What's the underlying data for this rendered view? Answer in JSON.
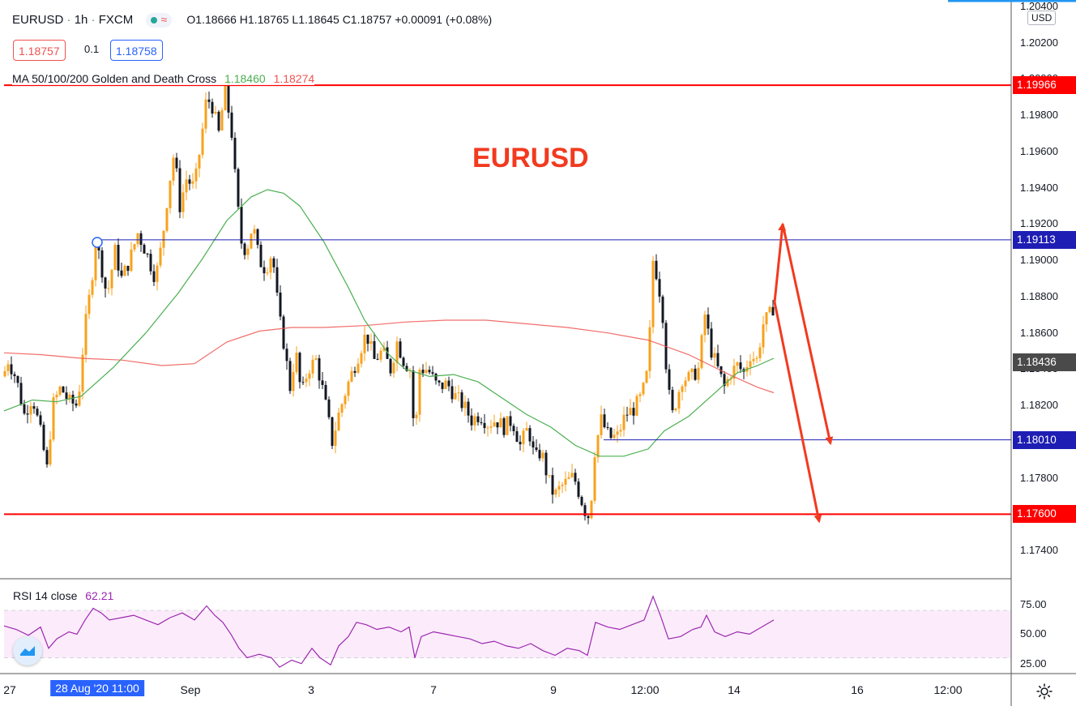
{
  "header": {
    "symbol": "EURUSD",
    "interval": "1h",
    "exchange": "FXCM",
    "ohlc": "O1.18666  H1.18765  L1.18645  C1.18757  +0.00091 (+0.08%)",
    "sell_price": "1.18757",
    "spread": "0.1",
    "buy_price": "1.18758"
  },
  "indicator": {
    "label": "MA 50/100/200 Golden and Death Cross",
    "value_green": "1.18460",
    "value_red": "1.18274"
  },
  "annotation_title": "EURUSD",
  "currency": "USD",
  "colors": {
    "candle_up": "#f7a21c",
    "candle_down": "#131722",
    "ma_fast": "#4caf50",
    "ma_slow": "#ef5350",
    "level_red": "#ff0000",
    "level_blue": "#1e1eb4",
    "arrow": "#f23a1f",
    "rsi_line": "#9c27b0",
    "rsi_band": "#fcecfb"
  },
  "chart_data": {
    "type": "candlestick",
    "ylim": [
      1.1728,
      1.204
    ],
    "y_ticks": [
      "1.20400",
      "1.20200",
      "1.20000",
      "1.19800",
      "1.19600",
      "1.19400",
      "1.19200",
      "1.19000",
      "1.18800",
      "1.18600",
      "1.18400",
      "1.18200",
      "1.18000",
      "1.17800",
      "1.17600",
      "1.17400"
    ],
    "x_ticks": [
      "27",
      "28 Aug '20  11:00",
      "Sep",
      "3",
      "7",
      "9",
      "12:00",
      "14",
      "16",
      "12:00"
    ],
    "horizontal_levels": [
      {
        "value": 1.19966,
        "label": "1.19966",
        "color": "red"
      },
      {
        "value": 1.19113,
        "label": "1.19113",
        "color": "blue"
      },
      {
        "value": 1.18436,
        "label": "1.18436",
        "color": "gray"
      },
      {
        "value": 1.1801,
        "label": "1.18010",
        "color": "blue"
      },
      {
        "value": 1.176,
        "label": "1.17600",
        "color": "red"
      }
    ],
    "price_path": [
      [
        0,
        1.183
      ],
      [
        10,
        1.1845
      ],
      [
        20,
        1.1835
      ],
      [
        30,
        1.1815
      ],
      [
        40,
        1.1825
      ],
      [
        50,
        1.1805
      ],
      [
        58,
        1.1785
      ],
      [
        65,
        1.182
      ],
      [
        75,
        1.183
      ],
      [
        85,
        1.1822
      ],
      [
        96,
        1.182
      ],
      [
        104,
        1.186
      ],
      [
        112,
        1.1885
      ],
      [
        118,
        1.191
      ],
      [
        124,
        1.19
      ],
      [
        132,
        1.188
      ],
      [
        142,
        1.1905
      ],
      [
        150,
        1.189
      ],
      [
        160,
        1.19
      ],
      [
        170,
        1.1915
      ],
      [
        180,
        1.1905
      ],
      [
        192,
        1.189
      ],
      [
        200,
        1.191
      ],
      [
        208,
        1.194
      ],
      [
        215,
        1.196
      ],
      [
        222,
        1.193
      ],
      [
        230,
        1.1945
      ],
      [
        240,
        1.194
      ],
      [
        248,
        1.1965
      ],
      [
        255,
        1.199
      ],
      [
        262,
        1.1985
      ],
      [
        270,
        1.197
      ],
      [
        278,
        1.1995
      ],
      [
        286,
        1.197
      ],
      [
        292,
        1.1935
      ],
      [
        298,
        1.191
      ],
      [
        304,
        1.1905
      ],
      [
        312,
        1.192
      ],
      [
        320,
        1.19
      ],
      [
        328,
        1.1895
      ],
      [
        336,
        1.1905
      ],
      [
        344,
        1.187
      ],
      [
        350,
        1.1855
      ],
      [
        358,
        1.183
      ],
      [
        365,
        1.185
      ],
      [
        372,
        1.1825
      ],
      [
        380,
        1.184
      ],
      [
        390,
        1.1845
      ],
      [
        400,
        1.1825
      ],
      [
        410,
        1.18
      ],
      [
        418,
        1.1815
      ],
      [
        428,
        1.183
      ],
      [
        436,
        1.184
      ],
      [
        444,
        1.185
      ],
      [
        452,
        1.186
      ],
      [
        462,
        1.1845
      ],
      [
        472,
        1.185
      ],
      [
        482,
        1.184
      ],
      [
        490,
        1.1855
      ],
      [
        498,
        1.1845
      ],
      [
        506,
        1.184
      ],
      [
        512,
        1.18
      ],
      [
        518,
        1.184
      ],
      [
        528,
        1.184
      ],
      [
        540,
        1.183
      ],
      [
        552,
        1.1832
      ],
      [
        562,
        1.1825
      ],
      [
        572,
        1.182
      ],
      [
        582,
        1.1812
      ],
      [
        592,
        1.1815
      ],
      [
        602,
        1.181
      ],
      [
        612,
        1.1812
      ],
      [
        622,
        1.1808
      ],
      [
        632,
        1.1812
      ],
      [
        642,
        1.1798
      ],
      [
        652,
        1.1808
      ],
      [
        660,
        1.179
      ],
      [
        668,
        1.1795
      ],
      [
        676,
        1.178
      ],
      [
        684,
        1.177
      ],
      [
        692,
        1.1775
      ],
      [
        700,
        1.1778
      ],
      [
        708,
        1.1781
      ],
      [
        716,
        1.177
      ],
      [
        722,
        1.1762
      ],
      [
        728,
        1.1758
      ],
      [
        734,
        1.1795
      ],
      [
        742,
        1.1812
      ],
      [
        752,
        1.1802
      ],
      [
        762,
        1.1803
      ],
      [
        772,
        1.1815
      ],
      [
        782,
        1.1818
      ],
      [
        792,
        1.1825
      ],
      [
        800,
        1.184
      ],
      [
        806,
        1.19
      ],
      [
        812,
        1.189
      ],
      [
        818,
        1.187
      ],
      [
        824,
        1.183
      ],
      [
        830,
        1.1815
      ],
      [
        836,
        1.1825
      ],
      [
        842,
        1.1835
      ],
      [
        852,
        1.1835
      ],
      [
        862,
        1.184
      ],
      [
        870,
        1.187
      ],
      [
        878,
        1.185
      ],
      [
        886,
        1.184
      ],
      [
        894,
        1.183
      ],
      [
        902,
        1.1838
      ],
      [
        910,
        1.1842
      ],
      [
        918,
        1.1838
      ],
      [
        926,
        1.1848
      ],
      [
        934,
        1.1845
      ],
      [
        942,
        1.1865
      ],
      [
        950,
        1.187
      ],
      [
        956,
        1.1876
      ]
    ],
    "ma_fast_path": [
      [
        5,
        1.1817
      ],
      [
        40,
        1.1823
      ],
      [
        70,
        1.1822
      ],
      [
        100,
        1.1825
      ],
      [
        140,
        1.1841
      ],
      [
        180,
        1.186
      ],
      [
        220,
        1.1882
      ],
      [
        250,
        1.1901
      ],
      [
        280,
        1.1922
      ],
      [
        310,
        1.1935
      ],
      [
        330,
        1.1939
      ],
      [
        350,
        1.1937
      ],
      [
        370,
        1.193
      ],
      [
        400,
        1.191
      ],
      [
        430,
        1.1885
      ],
      [
        450,
        1.1867
      ],
      [
        480,
        1.1848
      ],
      [
        500,
        1.184
      ],
      [
        530,
        1.1836
      ],
      [
        560,
        1.1837
      ],
      [
        590,
        1.1833
      ],
      [
        620,
        1.1824
      ],
      [
        650,
        1.1815
      ],
      [
        680,
        1.1808
      ],
      [
        710,
        1.1798
      ],
      [
        740,
        1.1792
      ],
      [
        770,
        1.1792
      ],
      [
        800,
        1.1796
      ],
      [
        820,
        1.1806
      ],
      [
        850,
        1.1814
      ],
      [
        880,
        1.1826
      ],
      [
        910,
        1.1838
      ],
      [
        935,
        1.1842
      ],
      [
        955,
        1.1846
      ]
    ],
    "ma_slow_path": [
      [
        5,
        1.1849
      ],
      [
        50,
        1.1848
      ],
      [
        100,
        1.1846
      ],
      [
        150,
        1.1845
      ],
      [
        200,
        1.1842
      ],
      [
        240,
        1.1843
      ],
      [
        280,
        1.1855
      ],
      [
        320,
        1.1861
      ],
      [
        360,
        1.1863
      ],
      [
        400,
        1.1863
      ],
      [
        450,
        1.1864
      ],
      [
        500,
        1.1866
      ],
      [
        550,
        1.1867
      ],
      [
        600,
        1.1867
      ],
      [
        650,
        1.1865
      ],
      [
        700,
        1.1863
      ],
      [
        750,
        1.186
      ],
      [
        800,
        1.1856
      ],
      [
        850,
        1.1848
      ],
      [
        900,
        1.1837
      ],
      [
        935,
        1.183
      ],
      [
        955,
        1.1827
      ]
    ],
    "arrows": [
      {
        "from": [
          956,
          1.1877
        ],
        "to": [
          966,
          1.192
        ]
      },
      {
        "from": [
          966,
          1.192
        ],
        "to": [
          1025,
          1.1799
        ]
      },
      {
        "from": [
          956,
          1.1877
        ],
        "to": [
          1011,
          1.1756
        ]
      }
    ],
    "rsi": {
      "label": "RSI 14 close",
      "value": "62.21",
      "ylim": [
        20,
        86
      ],
      "band": [
        30,
        70
      ],
      "y_ticks": [
        "75.00",
        "50.00",
        "25.00"
      ],
      "path": [
        [
          5,
          57
        ],
        [
          20,
          54
        ],
        [
          35,
          49
        ],
        [
          50,
          56
        ],
        [
          60,
          38
        ],
        [
          70,
          46
        ],
        [
          85,
          52
        ],
        [
          95,
          50
        ],
        [
          105,
          62
        ],
        [
          115,
          72
        ],
        [
          125,
          68
        ],
        [
          135,
          62
        ],
        [
          150,
          64
        ],
        [
          165,
          66
        ],
        [
          180,
          62
        ],
        [
          195,
          58
        ],
        [
          210,
          64
        ],
        [
          225,
          68
        ],
        [
          240,
          62
        ],
        [
          255,
          74
        ],
        [
          265,
          66
        ],
        [
          275,
          60
        ],
        [
          285,
          50
        ],
        [
          295,
          38
        ],
        [
          305,
          30
        ],
        [
          320,
          33
        ],
        [
          335,
          30
        ],
        [
          345,
          22
        ],
        [
          360,
          28
        ],
        [
          372,
          25
        ],
        [
          385,
          38
        ],
        [
          395,
          30
        ],
        [
          408,
          24
        ],
        [
          418,
          40
        ],
        [
          430,
          48
        ],
        [
          440,
          60
        ],
        [
          452,
          58
        ],
        [
          465,
          54
        ],
        [
          480,
          56
        ],
        [
          495,
          52
        ],
        [
          505,
          56
        ],
        [
          512,
          30
        ],
        [
          520,
          48
        ],
        [
          535,
          52
        ],
        [
          550,
          50
        ],
        [
          565,
          48
        ],
        [
          580,
          46
        ],
        [
          595,
          42
        ],
        [
          610,
          44
        ],
        [
          625,
          40
        ],
        [
          640,
          38
        ],
        [
          655,
          42
        ],
        [
          670,
          36
        ],
        [
          685,
          32
        ],
        [
          700,
          38
        ],
        [
          715,
          36
        ],
        [
          725,
          32
        ],
        [
          735,
          60
        ],
        [
          750,
          56
        ],
        [
          765,
          54
        ],
        [
          780,
          58
        ],
        [
          795,
          62
        ],
        [
          806,
          82
        ],
        [
          815,
          66
        ],
        [
          825,
          46
        ],
        [
          840,
          48
        ],
        [
          855,
          54
        ],
        [
          865,
          56
        ],
        [
          872,
          66
        ],
        [
          882,
          52
        ],
        [
          895,
          48
        ],
        [
          910,
          52
        ],
        [
          925,
          50
        ],
        [
          940,
          56
        ],
        [
          955,
          62
        ]
      ]
    }
  },
  "bottom_right_icon": "gear-icon",
  "bottom_left_icon": "tradingview-logo-icon"
}
